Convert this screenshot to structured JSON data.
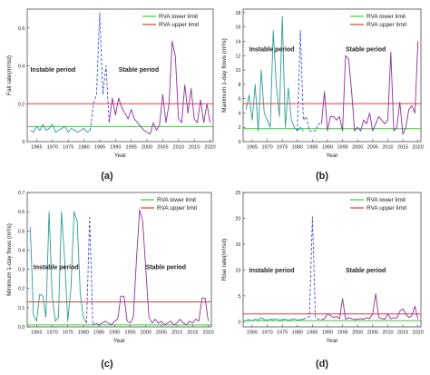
{
  "chart_data": [
    {
      "type": "line",
      "panel_label": "(a)",
      "xlabel": "Year",
      "ylabel": "Fall rate(m³/sd)",
      "xlim": [
        1962,
        2021
      ],
      "ylim": [
        0,
        0.7
      ],
      "yticks": [
        0,
        0.2,
        0.4,
        0.6
      ],
      "ytick_labels": [
        "0",
        "0.2",
        "0.4",
        "0.6"
      ],
      "xticks": [
        1965,
        1970,
        1975,
        1980,
        1985,
        1990,
        1995,
        2000,
        2005,
        2010,
        2015,
        2020
      ],
      "legend": [
        "RVA lower limit",
        "RVA upper limit"
      ],
      "legend_position": "top-right",
      "colors": {
        "lower": "#3cc83c",
        "upper": "#e23a3a",
        "instable": "#2e9e95",
        "stable": "#8f2e9f",
        "transition": "#3a4fd8"
      },
      "annotations": [
        {
          "text": "Instable period",
          "x": 1963,
          "y": 0.37
        },
        {
          "text": "Stable period",
          "x": 1991,
          "y": 0.37
        }
      ],
      "lower_limit": 0.08,
      "upper_limit": 0.2,
      "series": [
        {
          "period": "instable",
          "x": [
            1963,
            1964,
            1965,
            1966,
            1967,
            1968,
            1969,
            1970,
            1971,
            1972,
            1973,
            1974,
            1975,
            1976,
            1977,
            1978,
            1979,
            1980,
            1981,
            1982
          ],
          "values": [
            0.06,
            0.05,
            0.08,
            0.06,
            0.09,
            0.06,
            0.07,
            0.09,
            0.05,
            0.06,
            0.07,
            0.08,
            0.05,
            0.07,
            0.06,
            0.05,
            0.06,
            0.07,
            0.05,
            0.06
          ]
        },
        {
          "period": "transition",
          "x": [
            1982,
            1983,
            1984,
            1985,
            1986,
            1987,
            1988
          ],
          "values": [
            0.06,
            0.2,
            0.25,
            0.68,
            0.25,
            0.4,
            0.1
          ]
        },
        {
          "period": "stable",
          "x": [
            1988,
            1989,
            1990,
            1991,
            1992,
            1993,
            1994,
            1995,
            1996,
            1997,
            1998,
            1999,
            2000,
            2001,
            2002,
            2003,
            2004,
            2005,
            2006,
            2007,
            2008,
            2009,
            2010,
            2011,
            2012,
            2013,
            2014,
            2015,
            2016,
            2017,
            2018,
            2019,
            2020
          ],
          "values": [
            0.1,
            0.23,
            0.14,
            0.23,
            0.18,
            0.15,
            0.12,
            0.17,
            0.12,
            0.1,
            0.08,
            0.06,
            0.05,
            0.04,
            0.1,
            0.06,
            0.09,
            0.25,
            0.1,
            0.2,
            0.53,
            0.45,
            0.12,
            0.1,
            0.3,
            0.15,
            0.28,
            0.12,
            0.1,
            0.22,
            0.1,
            0.2,
            0.1
          ]
        }
      ]
    },
    {
      "type": "line",
      "panel_label": "(b)",
      "xlabel": "Year",
      "ylabel": "Maximum 1-day flows (m³/s)",
      "xlim": [
        1962,
        2021
      ],
      "ylim": [
        0,
        18.5
      ],
      "yticks": [
        0,
        2,
        4,
        6,
        8,
        10,
        12,
        14,
        16,
        18
      ],
      "ytick_labels": [
        "0",
        "2",
        "4",
        "6",
        "8",
        "10",
        "12",
        "14",
        "16",
        "18"
      ],
      "xticks": [
        1965,
        1970,
        1975,
        1980,
        1985,
        1990,
        1995,
        2000,
        2005,
        2010,
        2015,
        2020
      ],
      "legend": [
        "RVA lower limit",
        "RVA upper limit"
      ],
      "legend_position": "top-right",
      "colors": {
        "lower": "#3cc83c",
        "upper": "#e23a3a",
        "instable": "#2e9e95",
        "stable": "#8f2e9f",
        "transition": "#3a4fd8"
      },
      "annotations": [
        {
          "text": "Instable period",
          "x": 1964,
          "y": 12.6
        },
        {
          "text": "Stable period",
          "x": 1996,
          "y": 12.6
        }
      ],
      "lower_limit": 1.8,
      "upper_limit": 5.3,
      "series": [
        {
          "period": "instable",
          "x": [
            1963,
            1964,
            1965,
            1966,
            1967,
            1968,
            1969,
            1970,
            1971,
            1972,
            1973,
            1974,
            1975,
            1976,
            1977,
            1978,
            1979,
            1980,
            1981,
            1982
          ],
          "values": [
            4.5,
            6.5,
            3,
            8,
            1.5,
            10,
            4,
            3,
            2,
            15.5,
            8,
            3.5,
            17.5,
            2,
            7.5,
            3,
            2,
            1.5,
            2,
            1.5
          ]
        },
        {
          "period": "transition",
          "x": [
            1980,
            1981,
            1982,
            1983,
            1984,
            1985,
            1986,
            1987,
            1988
          ],
          "values": [
            1.5,
            15.5,
            3,
            3.5,
            1.5,
            1.5,
            1.5,
            2.5,
            2.5
          ]
        },
        {
          "period": "stable",
          "x": [
            1988,
            1989,
            1990,
            1991,
            1992,
            1993,
            1994,
            1995,
            1996,
            1997,
            1998,
            1999,
            2000,
            2001,
            2002,
            2003,
            2004,
            2005,
            2006,
            2007,
            2008,
            2009,
            2010,
            2011,
            2012,
            2013,
            2014,
            2015,
            2016,
            2017,
            2018,
            2019,
            2020
          ],
          "values": [
            2.5,
            7,
            1.5,
            3.5,
            3.5,
            3,
            3.5,
            1.5,
            12,
            11.5,
            7,
            1.5,
            2,
            1.5,
            3,
            2.5,
            4,
            1.5,
            2.5,
            3.5,
            3,
            2.5,
            3,
            12.5,
            1.5,
            2,
            5.5,
            1,
            2,
            4.5,
            5,
            4,
            14
          ]
        }
      ]
    },
    {
      "type": "line",
      "panel_label": "(c)",
      "xlabel": "Year",
      "ylabel": "Minimum 1-day flows (m³/s)",
      "xlim": [
        1962,
        2021
      ],
      "ylim": [
        0,
        0.7
      ],
      "yticks": [
        0,
        0.1,
        0.2,
        0.3,
        0.4,
        0.5,
        0.6,
        0.7
      ],
      "ytick_labels": [
        "0.0",
        "0.1",
        "0.2",
        "0.3",
        "0.4",
        "0.5",
        "0.6",
        "0.7"
      ],
      "xticks": [
        1965,
        1970,
        1975,
        1980,
        1985,
        1990,
        1995,
        2000,
        2005,
        2010,
        2015,
        2020
      ],
      "legend": [
        "RVA lower limit",
        "RVA upper limit"
      ],
      "legend_position": "top-right",
      "colors": {
        "lower": "#3cc83c",
        "upper": "#e23a3a",
        "instable": "#2e9e95",
        "stable": "#8f2e9f",
        "transition": "#3a4fd8"
      },
      "annotations": [
        {
          "text": "Instable period",
          "x": 1964,
          "y": 0.3
        },
        {
          "text": "Stable period",
          "x": 2000,
          "y": 0.3
        }
      ],
      "lower_limit": 0.01,
      "upper_limit": 0.13,
      "series": [
        {
          "period": "instable",
          "x": [
            1963,
            1964,
            1965,
            1966,
            1967,
            1968,
            1969,
            1970,
            1971,
            1972,
            1973,
            1974,
            1975,
            1976,
            1977,
            1978,
            1979,
            1980,
            1981
          ],
          "values": [
            0.52,
            0.06,
            0.03,
            0.17,
            0.16,
            0.05,
            0.6,
            0.16,
            0.03,
            0.05,
            0.6,
            0.35,
            0.03,
            0.2,
            0.6,
            0.55,
            0.17,
            0.05,
            0.02
          ]
        },
        {
          "period": "transition",
          "x": [
            1981,
            1982,
            1983,
            1984
          ],
          "values": [
            0.02,
            0.57,
            0.01,
            0.02
          ]
        },
        {
          "period": "stable",
          "x": [
            1984,
            1985,
            1986,
            1987,
            1988,
            1989,
            1990,
            1991,
            1992,
            1993,
            1994,
            1995,
            1996,
            1997,
            1998,
            1999,
            2000,
            2001,
            2002,
            2003,
            2004,
            2005,
            2006,
            2007,
            2008,
            2009,
            2010,
            2011,
            2012,
            2013,
            2014,
            2015,
            2016,
            2017,
            2018,
            2019,
            2020
          ],
          "values": [
            0.02,
            0.01,
            0.02,
            0.03,
            0.02,
            0.01,
            0.03,
            0.04,
            0.16,
            0.16,
            0.03,
            0.02,
            0.05,
            0.35,
            0.61,
            0.55,
            0.3,
            0.05,
            0.02,
            0.04,
            0.02,
            0.03,
            0.01,
            0.02,
            0.03,
            0.01,
            0.02,
            0.04,
            0.02,
            0.01,
            0.03,
            0.02,
            0.04,
            0.03,
            0.15,
            0.15,
            0.03
          ]
        }
      ]
    },
    {
      "type": "line",
      "panel_label": "(d)",
      "xlabel": "Year",
      "ylabel": "Rise rate(m³/sd)",
      "xlim": [
        1962,
        2021
      ],
      "ylim": [
        -1,
        25
      ],
      "yticks": [
        0,
        5,
        10,
        15,
        20,
        25
      ],
      "ytick_labels": [
        "0",
        "5",
        "10",
        "15",
        "20",
        "25"
      ],
      "xticks": [
        1965,
        1970,
        1975,
        1980,
        1985,
        1990,
        1995,
        2000,
        2005,
        2010,
        2015,
        2020
      ],
      "legend": [
        "RVA lower limit",
        "RVA upper limit"
      ],
      "legend_position": "top-right",
      "colors": {
        "lower": "#3cc83c",
        "upper": "#e23a3a",
        "instable": "#2e9e95",
        "stable": "#8f2e9f",
        "transition": "#3a4fd8"
      },
      "annotations": [
        {
          "text": "Instable period",
          "x": 1964,
          "y": 9.5
        },
        {
          "text": "Stable period",
          "x": 1996,
          "y": 9.5
        }
      ],
      "lower_limit": 0.2,
      "upper_limit": 1.5,
      "series": [
        {
          "period": "instable",
          "x": [
            1963,
            1964,
            1965,
            1966,
            1967,
            1968,
            1969,
            1970,
            1971,
            1972,
            1973,
            1974,
            1975,
            1976,
            1977,
            1978,
            1979,
            1980,
            1981,
            1982
          ],
          "values": [
            0.3,
            0.4,
            0.2,
            0.5,
            0.3,
            0.8,
            0.4,
            0.3,
            0.5,
            0.4,
            0.6,
            0.3,
            0.4,
            0.5,
            0.3,
            0.4,
            0.6,
            0.3,
            0.4,
            0.5
          ]
        },
        {
          "period": "transition",
          "x": [
            1982,
            1983,
            1984,
            1985,
            1986,
            1987,
            1988
          ],
          "values": [
            0.5,
            0.8,
            1,
            20.3,
            0.8,
            0.5,
            0.4
          ]
        },
        {
          "period": "stable",
          "x": [
            1988,
            1989,
            1990,
            1991,
            1992,
            1993,
            1994,
            1995,
            1996,
            1997,
            1998,
            1999,
            2000,
            2001,
            2002,
            2003,
            2004,
            2005,
            2006,
            2007,
            2008,
            2009,
            2010,
            2011,
            2012,
            2013,
            2014,
            2015,
            2016,
            2017,
            2018,
            2019,
            2020
          ],
          "values": [
            0.4,
            0.6,
            1.5,
            1.2,
            0.8,
            1,
            0.6,
            4.5,
            0.5,
            0.8,
            0.6,
            0.4,
            0.5,
            0.6,
            0.5,
            0.8,
            0.6,
            1.5,
            5.4,
            0.8,
            0.6,
            0.5,
            1.5,
            0.6,
            0.8,
            0.7,
            2,
            2.5,
            1.5,
            0.8,
            1.2,
            3,
            0.5
          ]
        }
      ]
    }
  ]
}
